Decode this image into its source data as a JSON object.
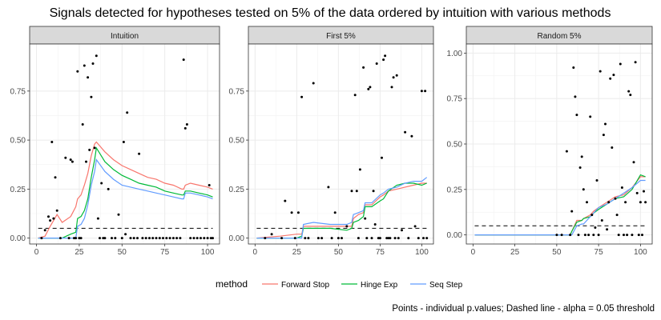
{
  "chart_data": {
    "type": "line",
    "title": "Signals detected for hypotheses tested on 5% of the data ordered by intuition with various methods",
    "caption": "Points - individual p.values; Dashed line - alpha = 0.05 threshold",
    "legend": {
      "title": "method",
      "placement": "bottom",
      "entries": [
        {
          "label": "Forward Stop",
          "color": "#F8766D"
        },
        {
          "label": "Hinge Exp",
          "color": "#00BA38"
        },
        {
          "label": "Seq Step",
          "color": "#619CFF"
        }
      ]
    },
    "x_ticks": [
      0,
      25,
      50,
      75,
      100
    ],
    "xlim": [
      -4,
      107
    ],
    "threshold": 0.05,
    "grid": true,
    "panels": [
      {
        "strip": "Intuition",
        "ylim": [
          -0.03,
          0.99
        ],
        "y_ticks": [
          0.0,
          0.25,
          0.5,
          0.75
        ],
        "y_tick_labels": [
          "0.00",
          "0.25",
          "0.50",
          "0.75"
        ],
        "series": [
          {
            "name": "Forward Stop",
            "x": [
              1,
              5,
              8,
              12,
              15,
              20,
              23,
              24,
              26,
              28,
              30,
              32,
              34,
              35,
              40,
              45,
              50,
              55,
              60,
              65,
              70,
              75,
              80,
              85,
              86,
              87,
              90,
              95,
              100,
              103
            ],
            "y": [
              0.0,
              0.01,
              0.06,
              0.12,
              0.08,
              0.11,
              0.16,
              0.2,
              0.22,
              0.27,
              0.33,
              0.42,
              0.48,
              0.49,
              0.44,
              0.4,
              0.37,
              0.35,
              0.33,
              0.31,
              0.3,
              0.28,
              0.27,
              0.25,
              0.25,
              0.27,
              0.28,
              0.27,
              0.26,
              0.25
            ]
          },
          {
            "name": "Hinge Exp",
            "x": [
              1,
              5,
              10,
              15,
              20,
              23,
              24,
              26,
              28,
              30,
              32,
              34,
              35,
              40,
              45,
              50,
              55,
              60,
              65,
              70,
              75,
              80,
              85,
              86,
              87,
              90,
              95,
              100,
              103
            ],
            "y": [
              0.0,
              0.0,
              0.0,
              0.0,
              0.02,
              0.03,
              0.1,
              0.11,
              0.14,
              0.2,
              0.31,
              0.4,
              0.46,
              0.39,
              0.35,
              0.32,
              0.3,
              0.28,
              0.27,
              0.26,
              0.24,
              0.23,
              0.22,
              0.22,
              0.24,
              0.24,
              0.23,
              0.22,
              0.21
            ]
          },
          {
            "name": "Seq Step",
            "x": [
              1,
              5,
              10,
              15,
              20,
              23,
              24,
              26,
              28,
              30,
              32,
              34,
              35,
              40,
              45,
              50,
              55,
              60,
              65,
              70,
              75,
              80,
              85,
              86,
              87,
              90,
              95,
              100,
              103
            ],
            "y": [
              0.0,
              0.0,
              0.0,
              0.0,
              0.0,
              0.0,
              0.06,
              0.07,
              0.1,
              0.17,
              0.27,
              0.34,
              0.4,
              0.34,
              0.3,
              0.27,
              0.26,
              0.25,
              0.24,
              0.23,
              0.22,
              0.21,
              0.2,
              0.2,
              0.23,
              0.23,
              0.22,
              0.21,
              0.2
            ]
          }
        ],
        "points": {
          "x": [
            3,
            5,
            7,
            8,
            9,
            10,
            11,
            12,
            14,
            17,
            19,
            20,
            21,
            22,
            23,
            24,
            25,
            26,
            27,
            28,
            29,
            30,
            31,
            32,
            33,
            34,
            35,
            36,
            37,
            38,
            39,
            40,
            42,
            44,
            46,
            48,
            50,
            51,
            52,
            53,
            55,
            57,
            59,
            60,
            62,
            64,
            66,
            68,
            70,
            72,
            74,
            76,
            78,
            80,
            82,
            84,
            86,
            87,
            88,
            90,
            92,
            94,
            96,
            98,
            100,
            101,
            102,
            103
          ],
          "y": [
            0.0,
            0.04,
            0.11,
            0.09,
            0.49,
            0.1,
            0.31,
            0.14,
            0.0,
            0.41,
            0.0,
            0.4,
            0.39,
            0.0,
            0.0,
            0.85,
            0.0,
            0.0,
            0.58,
            0.88,
            0.39,
            0.82,
            0.45,
            0.72,
            0.89,
            0.46,
            0.93,
            0.1,
            0.0,
            0.28,
            0.0,
            0.0,
            0.25,
            0.0,
            0.0,
            0.12,
            0.0,
            0.49,
            0.02,
            0.64,
            0.0,
            0.0,
            0.0,
            0.43,
            0.0,
            0.0,
            0.0,
            0.0,
            0.0,
            0.0,
            0.0,
            0.0,
            0.0,
            0.0,
            0.0,
            0.0,
            0.91,
            0.56,
            0.58,
            0.0,
            0.0,
            0.0,
            0.0,
            0.0,
            0.0,
            0.27,
            0.0,
            0.0
          ]
        }
      },
      {
        "strip": "First 5%",
        "ylim": [
          -0.03,
          0.99
        ],
        "y_ticks": [
          0.0,
          0.25,
          0.5,
          0.75
        ],
        "y_tick_labels": [
          "0.00",
          "0.25",
          "0.50",
          "0.75"
        ],
        "series": [
          {
            "name": "Forward Stop",
            "x": [
              1,
              15,
              25,
              28,
              29,
              35,
              45,
              55,
              58,
              59,
              62,
              65,
              66,
              70,
              75,
              77,
              80,
              85,
              90,
              95,
              100,
              103
            ],
            "y": [
              0.0,
              0.01,
              0.02,
              0.02,
              0.06,
              0.06,
              0.06,
              0.06,
              0.06,
              0.1,
              0.12,
              0.13,
              0.17,
              0.17,
              0.21,
              0.22,
              0.24,
              0.25,
              0.26,
              0.27,
              0.28,
              0.28
            ]
          },
          {
            "name": "Hinge Exp",
            "x": [
              1,
              20,
              25,
              28,
              29,
              35,
              45,
              55,
              58,
              59,
              62,
              65,
              66,
              70,
              75,
              77,
              80,
              85,
              90,
              95,
              100,
              103
            ],
            "y": [
              0.0,
              0.0,
              0.0,
              0.01,
              0.05,
              0.05,
              0.05,
              0.04,
              0.05,
              0.08,
              0.09,
              0.11,
              0.16,
              0.16,
              0.19,
              0.2,
              0.24,
              0.27,
              0.28,
              0.28,
              0.27,
              0.28
            ]
          },
          {
            "name": "Seq Step",
            "x": [
              1,
              20,
              25,
              28,
              29,
              35,
              45,
              55,
              58,
              59,
              62,
              65,
              66,
              70,
              75,
              77,
              80,
              85,
              90,
              95,
              100,
              103
            ],
            "y": [
              0.0,
              0.0,
              0.0,
              0.0,
              0.07,
              0.08,
              0.07,
              0.07,
              0.08,
              0.12,
              0.13,
              0.14,
              0.18,
              0.18,
              0.22,
              0.23,
              0.25,
              0.26,
              0.28,
              0.29,
              0.29,
              0.31
            ]
          }
        ],
        "points": {
          "x": [
            6,
            10,
            16,
            18,
            22,
            24,
            26,
            28,
            30,
            32,
            35,
            38,
            40,
            44,
            46,
            48,
            50,
            52,
            55,
            58,
            60,
            61,
            62,
            63,
            65,
            66,
            67,
            68,
            69,
            70,
            71,
            72,
            73,
            74,
            75,
            76,
            77,
            78,
            79,
            80,
            81,
            82,
            83,
            84,
            85,
            86,
            88,
            90,
            92,
            94,
            96,
            98,
            100,
            101,
            102,
            103
          ],
          "y": [
            0.0,
            0.02,
            0.0,
            0.19,
            0.13,
            0.0,
            0.13,
            0.72,
            0.0,
            0.0,
            0.79,
            0.0,
            0.0,
            0.26,
            0.0,
            0.13,
            0.0,
            0.0,
            0.06,
            0.24,
            0.73,
            0.24,
            0.0,
            0.35,
            0.87,
            0.1,
            0.0,
            0.76,
            0.77,
            0.0,
            0.24,
            0.07,
            0.89,
            0.0,
            0.0,
            0.41,
            0.91,
            0.93,
            0.0,
            0.0,
            0.0,
            0.77,
            0.82,
            0.0,
            0.83,
            0.0,
            0.04,
            0.54,
            0.0,
            0.52,
            0.06,
            0.0,
            0.75,
            0.0,
            0.75,
            0.0
          ]
        }
      },
      {
        "strip": "Random 5%",
        "ylim": [
          -0.05,
          1.05
        ],
        "y_ticks": [
          0.0,
          0.25,
          0.5,
          0.75,
          1.0
        ],
        "y_tick_labels": [
          "0.00",
          "0.25",
          "0.50",
          "0.75",
          "1.00"
        ],
        "series": [
          {
            "name": "Forward Stop",
            "x": [
              1,
              55,
              58,
              59,
              62,
              65,
              66,
              70,
              72,
              75,
              80,
              85,
              90,
              95,
              100,
              103
            ],
            "y": [
              0.0,
              0.0,
              0.0,
              0.02,
              0.08,
              0.08,
              0.09,
              0.11,
              0.13,
              0.15,
              0.18,
              0.21,
              0.22,
              0.26,
              0.32,
              0.32
            ]
          },
          {
            "name": "Hinge Exp",
            "x": [
              1,
              55,
              58,
              59,
              62,
              65,
              66,
              70,
              72,
              75,
              80,
              85,
              90,
              95,
              100,
              103
            ],
            "y": [
              0.0,
              0.0,
              0.0,
              0.02,
              0.07,
              0.08,
              0.09,
              0.1,
              0.12,
              0.14,
              0.17,
              0.2,
              0.21,
              0.25,
              0.33,
              0.32
            ]
          },
          {
            "name": "Seq Step",
            "x": [
              1,
              55,
              58,
              59,
              62,
              65,
              66,
              70,
              72,
              75,
              80,
              85,
              90,
              95,
              100,
              103
            ],
            "y": [
              0.0,
              0.0,
              0.0,
              0.0,
              0.05,
              0.06,
              0.06,
              0.1,
              0.12,
              0.15,
              0.17,
              0.2,
              0.23,
              0.26,
              0.3,
              0.3
            ]
          }
        ],
        "points": {
          "x": [
            50,
            53,
            56,
            58,
            59,
            60,
            61,
            62,
            63,
            64,
            65,
            66,
            67,
            68,
            69,
            70,
            71,
            72,
            73,
            74,
            75,
            76,
            77,
            78,
            79,
            80,
            81,
            82,
            83,
            84,
            85,
            86,
            87,
            88,
            89,
            90,
            91,
            92,
            93,
            94,
            95,
            96,
            97,
            98,
            99,
            100,
            101,
            102,
            103
          ],
          "y": [
            0.0,
            0.0,
            0.46,
            0.0,
            0.13,
            0.92,
            0.76,
            0.66,
            0.0,
            0.37,
            0.43,
            0.25,
            0.0,
            0.18,
            0.0,
            0.65,
            0.11,
            0.0,
            0.04,
            0.3,
            0.0,
            0.9,
            0.08,
            0.55,
            0.61,
            0.03,
            0.18,
            0.86,
            0.48,
            0.88,
            0.2,
            0.11,
            0.0,
            0.94,
            0.26,
            0.0,
            0.18,
            0.0,
            0.79,
            0.77,
            0.0,
            0.4,
            0.95,
            0.23,
            0.0,
            0.18,
            0.0,
            0.24,
            0.18
          ]
        }
      }
    ]
  }
}
